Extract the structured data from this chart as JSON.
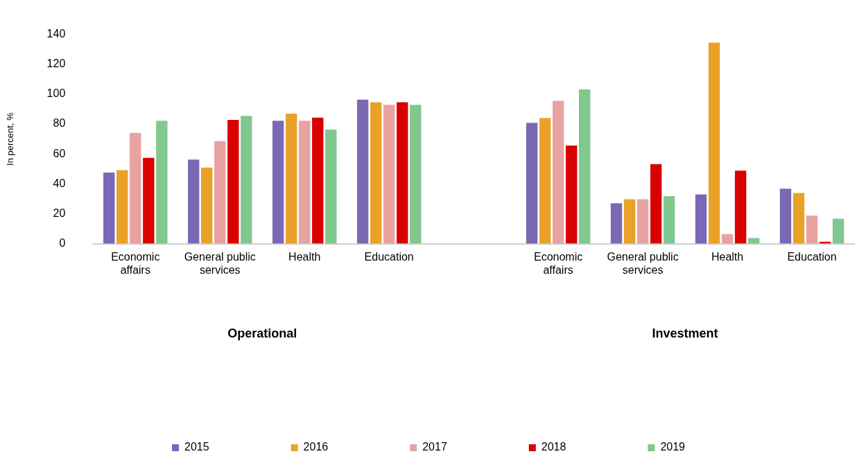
{
  "chart_data": {
    "type": "bar",
    "ylabel": "In percent, %",
    "categories": [
      "Economic affairs",
      "General public services",
      "Health",
      "Education",
      null,
      "Economic affairs",
      "General public services",
      "Health",
      "Education"
    ],
    "series": [
      {
        "name": "2015",
        "color": "#7b68b4",
        "values": [
          47.6,
          56.2,
          82.2,
          96.3,
          null,
          80.8,
          27.1,
          33,
          36.8
        ]
      },
      {
        "name": "2016",
        "color": "#e9a228",
        "values": [
          49.2,
          50.9,
          87,
          94.6,
          null,
          84.1,
          29.7,
          134.5,
          33.9
        ]
      },
      {
        "name": "2017",
        "color": "#e8a3a1",
        "values": [
          74.1,
          68.7,
          82.2,
          92.9,
          null,
          95.5,
          29.7,
          6.4,
          18.8
        ]
      },
      {
        "name": "2018",
        "color": "#d90000",
        "values": [
          57.4,
          82.8,
          84.3,
          94.6,
          null,
          65.7,
          53.2,
          48.8,
          1.3
        ]
      },
      {
        "name": "2019",
        "color": "#80c88e",
        "values": [
          82.2,
          85.5,
          76.3,
          92.9,
          null,
          103.2,
          31.8,
          3.8,
          16.7
        ]
      }
    ],
    "ylim": [
      0,
      140
    ],
    "yticks": [
      0,
      20,
      40,
      60,
      80,
      100,
      120,
      140
    ],
    "grid": false,
    "legend": "bottom",
    "annotations": [
      "Operational",
      "Investment"
    ]
  }
}
